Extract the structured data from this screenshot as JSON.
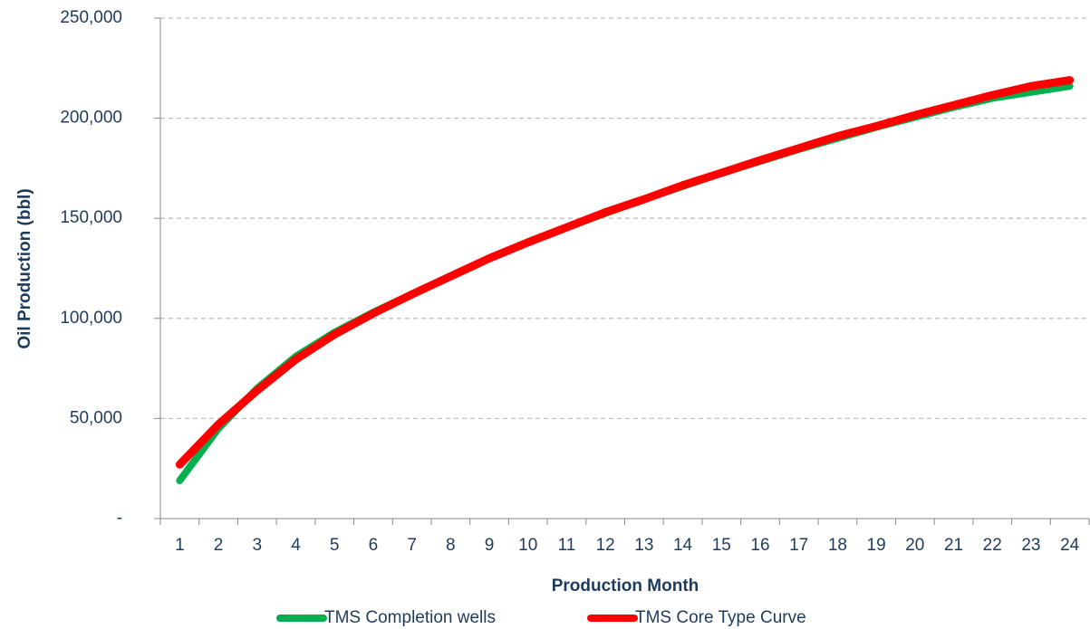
{
  "chart_data": {
    "type": "line",
    "x_label": "Production Month",
    "y_label": "Oil Production (bbl)",
    "categories": [
      1,
      2,
      3,
      4,
      5,
      6,
      7,
      8,
      9,
      10,
      11,
      12,
      13,
      14,
      15,
      16,
      17,
      18,
      19,
      20,
      21,
      22,
      23,
      24
    ],
    "series": [
      {
        "name": "TMS Completion wells",
        "color": "#00b050",
        "values": [
          19000,
          45000,
          65000,
          81000,
          93000,
          103000,
          112000,
          121000,
          130000,
          138000,
          145500,
          152500,
          159500,
          166000,
          172500,
          178500,
          184500,
          190000,
          195500,
          200500,
          205500,
          210000,
          213000,
          216000
        ]
      },
      {
        "name": "TMS Core Type Curve",
        "color": "#ff0000",
        "values": [
          27000,
          47000,
          64000,
          79500,
          92000,
          102500,
          112000,
          121000,
          130000,
          138000,
          145500,
          153000,
          159500,
          166500,
          172700,
          179000,
          185000,
          191000,
          196000,
          201500,
          206500,
          211500,
          216000,
          219000
        ]
      }
    ],
    "ylim": [
      0,
      250000
    ],
    "yticks": [
      {
        "value": 0,
        "label": "-"
      },
      {
        "value": 50000,
        "label": "50,000"
      },
      {
        "value": 100000,
        "label": "100,000"
      },
      {
        "value": 150000,
        "label": "150,000"
      },
      {
        "value": 200000,
        "label": "200,000"
      },
      {
        "value": 250000,
        "label": "250,000"
      }
    ],
    "grid": true,
    "legend": "bottom"
  }
}
